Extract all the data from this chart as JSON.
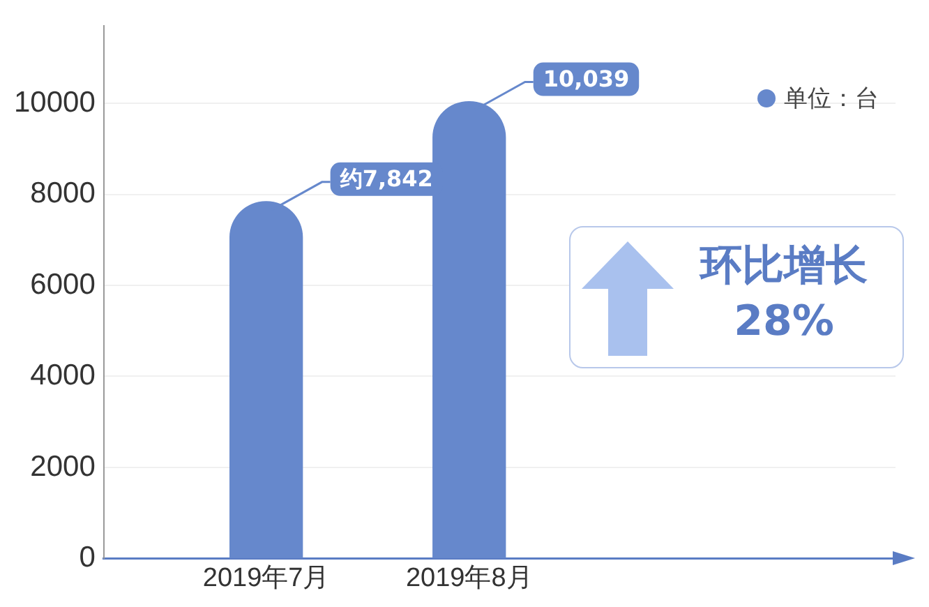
{
  "chart_data": {
    "type": "bar",
    "categories": [
      "2019年7月",
      "2019年8月"
    ],
    "series": [
      {
        "name": "单位：台",
        "color": "#6688cc",
        "values": [
          7842,
          10039
        ],
        "value_labels": [
          "约7,842",
          "10,039"
        ]
      }
    ],
    "ylim": [
      0,
      11700
    ],
    "yticks": [
      0,
      2000,
      4000,
      6000,
      8000,
      10000
    ],
    "grid": "y",
    "legend": "top right",
    "annotations": [
      "环比增长",
      "28%"
    ]
  }
}
